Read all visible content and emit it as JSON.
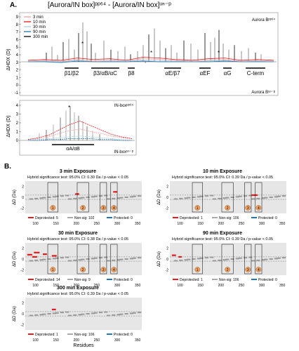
{
  "figure": {
    "title": "[Aurora/IN box]ᵖᵖ⁶⁴ - [Aurora/IN box]ᵘⁿ⁻ᵖ",
    "panel_a": "A.",
    "panel_b": "B."
  },
  "panel_a": {
    "legend": [
      {
        "label": "3 min",
        "color": "#f2a0a0"
      },
      {
        "label": "10 min",
        "color": "#e41a1c"
      },
      {
        "label": "30 min",
        "color": "#a6cee3"
      },
      {
        "label": "90 min",
        "color": "#1f78b4"
      },
      {
        "label": "300 min",
        "color": "#000000"
      }
    ],
    "top_plot": {
      "ylabel": "ΔHDX (D)",
      "yticks": [
        "9",
        "8",
        "7",
        "6",
        "5",
        "4",
        "3",
        "2",
        "1",
        "0",
        "-1"
      ],
      "label_top": "Aurora Bᵖᵖ⁶⁴",
      "label_bottom": "Aurora Bᵘⁿ⁻ᵖ",
      "domains": [
        "β1/β2",
        "β3/αB/αC",
        "β8",
        "αE/β7",
        "αEF",
        "αG",
        "C-term"
      ],
      "markers": [
        "*",
        "*",
        "*"
      ],
      "wildcard": "*"
    },
    "bottom_plot": {
      "ylabel": "ΔHDX (D)",
      "yticks": [
        "4",
        "3",
        "2",
        "1",
        "0"
      ],
      "label_top": "IN-boxᵖᵖ⁶⁴",
      "label_bottom": "IN-boxᵘⁿ⁻ᵖ",
      "domain": "αA/αB",
      "marker": "*"
    }
  },
  "panel_b": {
    "xlabel": "Residues",
    "ylabel": "ΔD (Da)",
    "xticks": [
      "100",
      "150",
      "200",
      "250",
      "300",
      "350"
    ],
    "yticks": [
      "2",
      "0",
      "-2"
    ],
    "panels": [
      {
        "title": "3 min Exposure",
        "subtitle": "Hybrid significance test: 95.0% CI: 0.30 Da / p-value < 0.05",
        "legend": [
          {
            "label": "Deprotected: 5",
            "color": "#e41a1c"
          },
          {
            "label": "Non-sig: 102",
            "color": "#aaaaaa"
          },
          {
            "label": "Protected: 0",
            "color": "#1f78b4"
          }
        ],
        "boxes": [
          "1",
          "2",
          "3",
          "4"
        ]
      },
      {
        "title": "10 min Exposure",
        "subtitle": "Hybrid significance test: 95.0% CI: 0.39 Da / p-value < 0.05",
        "legend": [
          {
            "label": "Deprotected: 1",
            "color": "#e41a1c"
          },
          {
            "label": "Non-sig: 106",
            "color": "#aaaaaa"
          },
          {
            "label": "Protected: 0",
            "color": "#1f78b4"
          }
        ],
        "boxes": [
          "1",
          "2",
          "3",
          "4"
        ]
      },
      {
        "title": "30 min Exposure",
        "subtitle": "Hybrid significance test: 95.0% CI: 0.38 Da / p-value < 0.05",
        "legend": [
          {
            "label": "Deprotected: 14",
            "color": "#e41a1c"
          },
          {
            "label": "Non-sig: 9",
            "color": "#aaaaaa"
          },
          {
            "label": "Protected: 0",
            "color": "#1f78b4"
          }
        ],
        "boxes": [
          "1",
          "2",
          "3",
          "4"
        ]
      },
      {
        "title": "90 min Exposure",
        "subtitle": "Hybrid significance test: 95.0% CI: 0.39 Da / p-value < 0.05",
        "legend": [
          {
            "label": "Deprotected: 1",
            "color": "#e41a1c"
          },
          {
            "label": "Non-sig: 106",
            "color": "#aaaaaa"
          },
          {
            "label": "Protected: 0",
            "color": "#1f78b4"
          }
        ],
        "boxes": [
          "1",
          "2",
          "3",
          "4"
        ]
      },
      {
        "title": "300 min Exposure",
        "subtitle": "Hybrid significance test: 95.0% CI: 0.39 Da / p-value < 0.05",
        "legend": [
          {
            "label": "Deprotected: 1",
            "color": "#e41a1c"
          },
          {
            "label": "Non-sig: 106",
            "color": "#aaaaaa"
          },
          {
            "label": "Protected: 0",
            "color": "#1f78b4"
          }
        ],
        "boxes": []
      }
    ]
  },
  "chart_data": [
    {
      "type": "line",
      "title": "[Aurora/IN box]ᵖᵖ⁶⁴ - [Aurora/IN box]ᵘⁿ⁻ᵖ",
      "ylabel": "ΔHDX (D)",
      "ylim": [
        -1,
        9
      ],
      "grid": false,
      "legend_position": "top-left",
      "series": [
        {
          "name": "3 min",
          "color": "#f2a0a0",
          "values": [
            0.1,
            0.2,
            0.1,
            0.3,
            0.1,
            0.2,
            0.1,
            0.4,
            0.3,
            0.2,
            0.1,
            0.2,
            0.3,
            0.1,
            0.2,
            0.1
          ]
        },
        {
          "name": "10 min",
          "color": "#e41a1c",
          "values": [
            0.2,
            0.3,
            0.2,
            0.5,
            0.3,
            0.4,
            0.2,
            0.6,
            0.5,
            0.3,
            0.2,
            0.4,
            0.5,
            0.2,
            0.3,
            0.2
          ]
        },
        {
          "name": "30 min",
          "color": "#a6cee3",
          "values": [
            0.0,
            0.1,
            0.0,
            0.2,
            0.0,
            0.1,
            0.1,
            0.2,
            0.1,
            0.1,
            0.0,
            0.1,
            0.2,
            0.0,
            0.1,
            0.0
          ]
        },
        {
          "name": "90 min",
          "color": "#1f78b4",
          "values": [
            0.0,
            0.0,
            -0.1,
            0.1,
            0.0,
            0.0,
            0.0,
            0.1,
            0.0,
            0.0,
            0.0,
            0.0,
            0.1,
            0.0,
            0.0,
            0.0
          ]
        },
        {
          "name": "300 min",
          "color": "#000000",
          "values": [
            0.6,
            1.2,
            0.8,
            2.4,
            1.0,
            3.6,
            1.5,
            5.2,
            2.2,
            1.8,
            1.0,
            3.4,
            4.2,
            1.4,
            2.6,
            1.1
          ]
        }
      ]
    },
    {
      "type": "line",
      "ylabel": "ΔHDX (D)",
      "ylim": [
        0,
        4
      ],
      "series": [
        {
          "name": "3 min",
          "color": "#f2a0a0",
          "values": [
            0.1,
            0.2,
            0.4,
            0.8,
            1.1,
            1.3,
            1.0,
            0.8,
            0.5,
            0.3,
            0.2
          ]
        },
        {
          "name": "10 min",
          "color": "#e41a1c",
          "values": [
            0.1,
            0.3,
            0.6,
            1.2,
            1.8,
            2.2,
            1.7,
            1.2,
            0.7,
            0.4,
            0.2
          ]
        },
        {
          "name": "30 min",
          "color": "#a6cee3",
          "values": [
            0.0,
            0.1,
            0.2,
            0.3,
            0.4,
            0.5,
            0.4,
            0.3,
            0.2,
            0.1,
            0.0
          ]
        },
        {
          "name": "90 min",
          "color": "#1f78b4",
          "values": [
            0.0,
            0.0,
            0.1,
            0.1,
            0.2,
            0.2,
            0.2,
            0.1,
            0.1,
            0.0,
            0.0
          ]
        },
        {
          "name": "300 min",
          "color": "#000000",
          "values": [
            0.3,
            0.8,
            1.5,
            2.4,
            3.3,
            3.8,
            3.1,
            2.3,
            1.4,
            0.8,
            0.4
          ]
        }
      ]
    },
    {
      "type": "scatter",
      "title": "3 min Exposure",
      "xlabel": "Residues",
      "ylabel": "ΔD (Da)",
      "xlim": [
        75,
        360
      ],
      "ylim": [
        -3,
        3
      ]
    },
    {
      "type": "scatter",
      "title": "10 min Exposure",
      "xlabel": "Residues",
      "ylabel": "ΔD (Da)",
      "xlim": [
        75,
        360
      ],
      "ylim": [
        -3,
        3
      ]
    },
    {
      "type": "scatter",
      "title": "30 min Exposure",
      "xlabel": "Residues",
      "ylabel": "ΔD (Da)",
      "xlim": [
        75,
        360
      ],
      "ylim": [
        -3,
        3
      ]
    },
    {
      "type": "scatter",
      "title": "90 min Exposure",
      "xlabel": "Residues",
      "ylabel": "ΔD (Da)",
      "xlim": [
        75,
        360
      ],
      "ylim": [
        -3,
        3
      ]
    },
    {
      "type": "scatter",
      "title": "300 min Exposure",
      "xlabel": "Residues",
      "ylabel": "ΔD (Da)",
      "xlim": [
        75,
        360
      ],
      "ylim": [
        -3,
        3
      ]
    }
  ]
}
